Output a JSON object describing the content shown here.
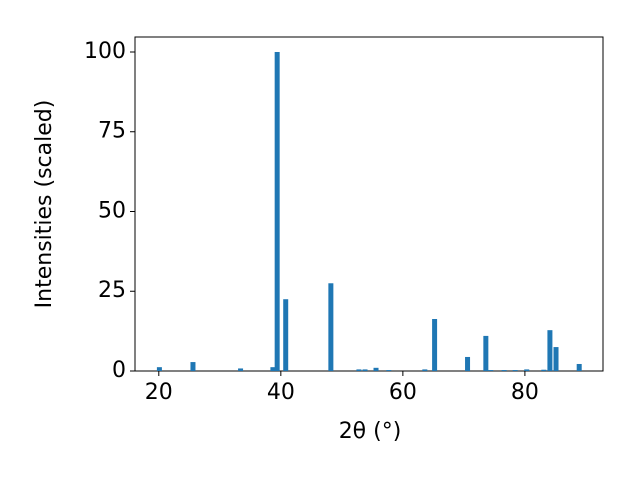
{
  "chart_data": {
    "type": "bar",
    "x_label": "2θ (°)",
    "y_label": "Intensities (scaled)",
    "x": [
      20.1,
      25.6,
      33.4,
      38.7,
      39.4,
      40.8,
      48.2,
      52.8,
      53.8,
      55.6,
      57.7,
      63.6,
      65.2,
      70.6,
      73.6,
      74.4,
      76.6,
      78.4,
      80.3,
      83.1,
      84.1,
      85.1,
      88.9
    ],
    "values": [
      1.2,
      2.8,
      0.8,
      1.2,
      100,
      22.5,
      27.5,
      0.5,
      0.5,
      1,
      0.3,
      0.5,
      16.3,
      4.4,
      11,
      0.3,
      0.3,
      0.3,
      0.5,
      0.4,
      12.8,
      7.5,
      2.2
    ],
    "color": "#1f77b4",
    "xlim": [
      16.1,
      92.8
    ],
    "xticks": [
      20,
      40,
      60,
      80
    ],
    "ylim": [
      0,
      104.7
    ],
    "yticks": [
      0,
      25,
      50,
      75,
      100
    ]
  }
}
